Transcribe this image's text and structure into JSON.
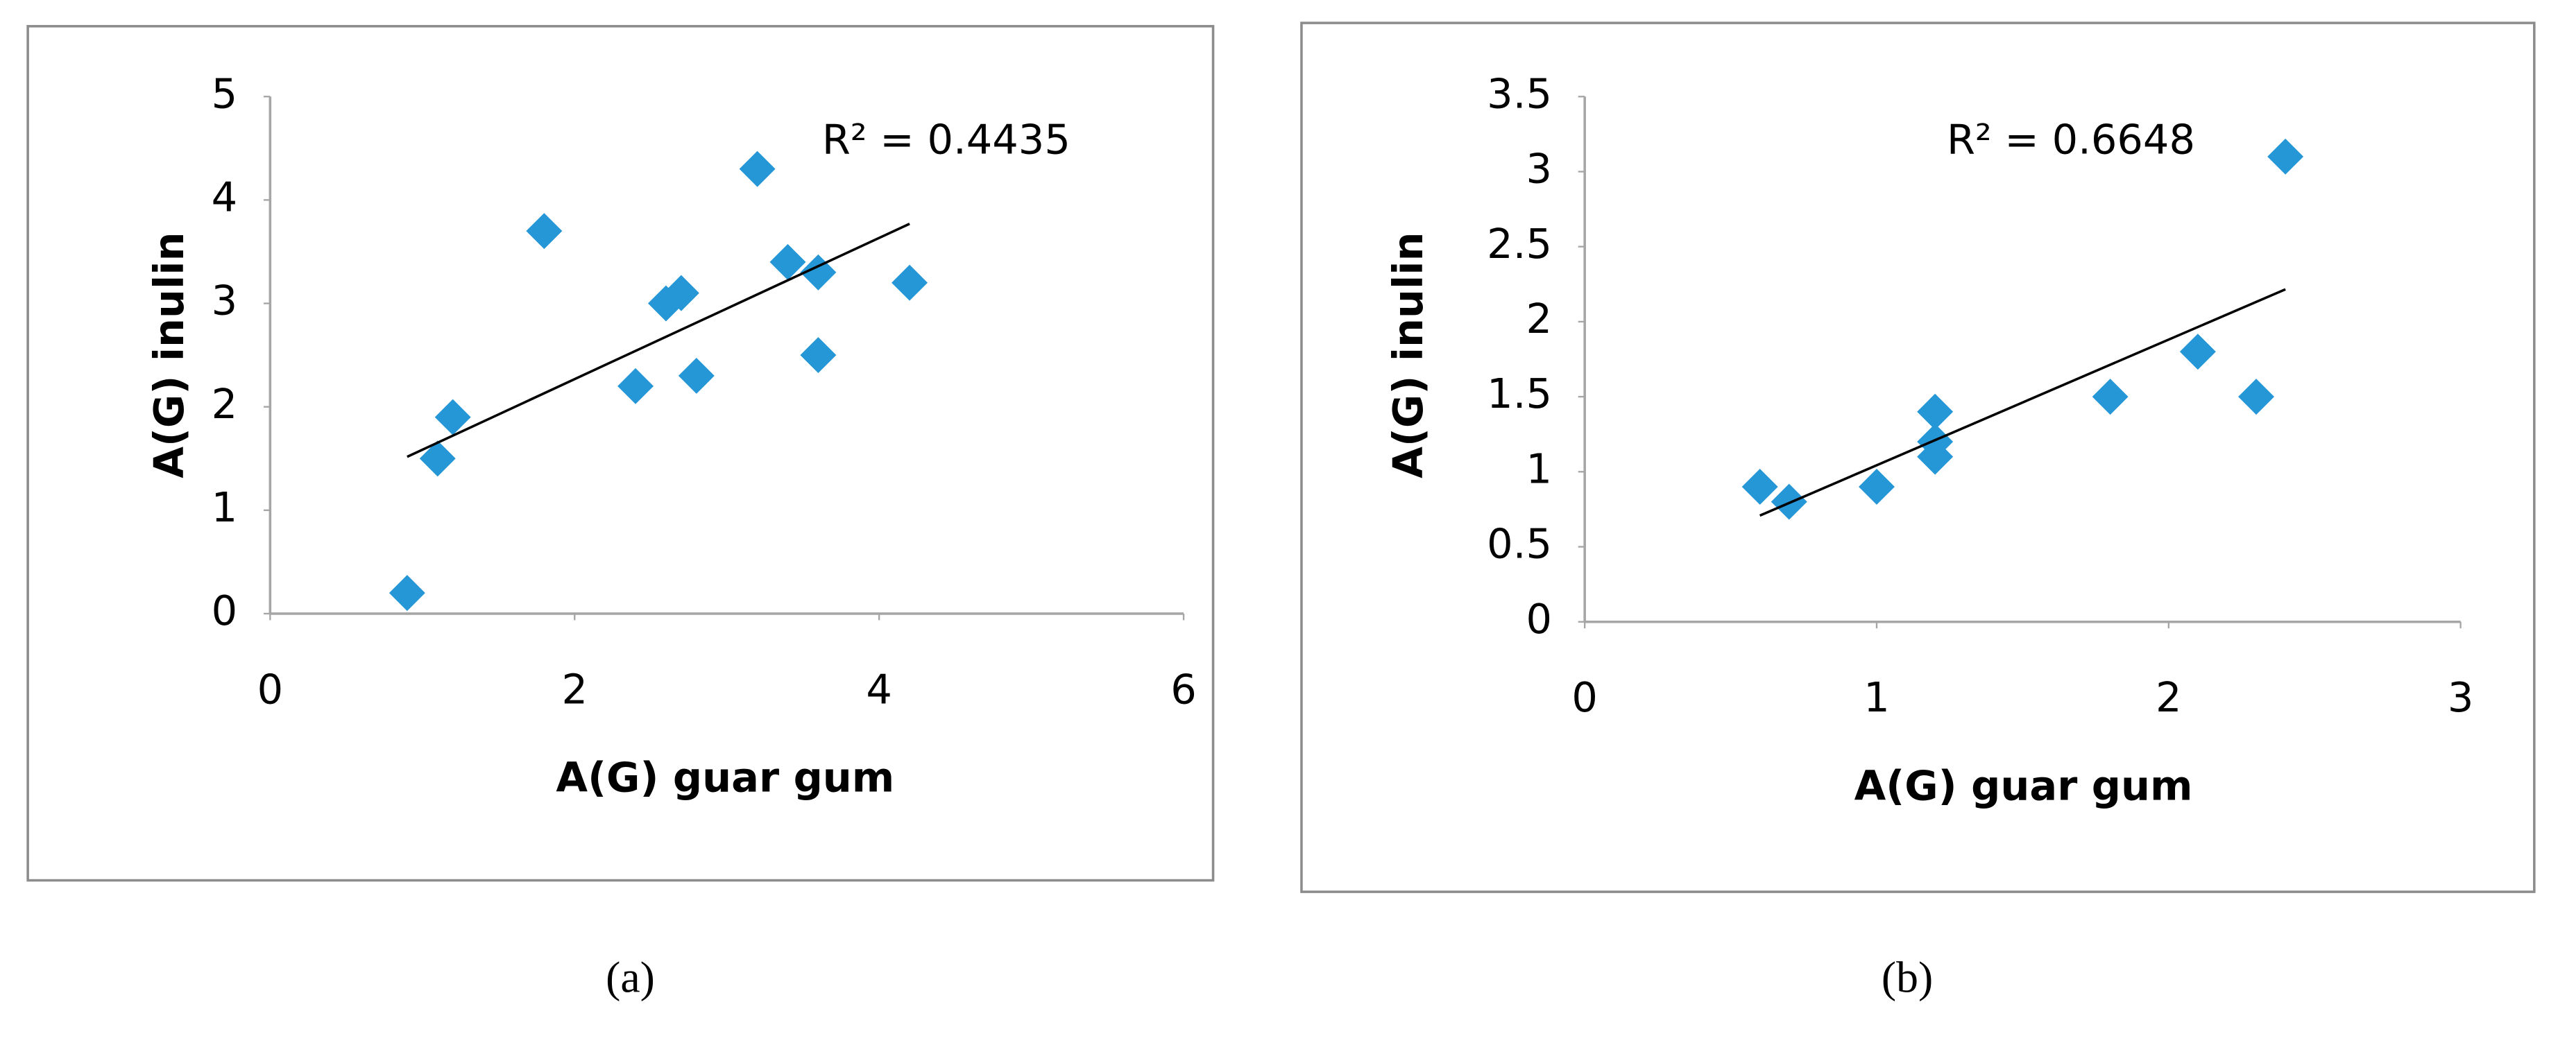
{
  "chart_data": [
    {
      "type": "scatter",
      "x": [
        0.9,
        1.1,
        1.2,
        1.8,
        2.4,
        2.6,
        2.7,
        2.8,
        3.2,
        3.4,
        3.6,
        3.6,
        4.2
      ],
      "values": [
        0.2,
        1.5,
        1.9,
        3.7,
        2.2,
        3.0,
        3.1,
        2.3,
        4.3,
        3.4,
        3.3,
        2.5,
        3.2
      ],
      "color": "#2596d6",
      "xlim": [
        0,
        6
      ],
      "xticks": [
        0,
        2,
        4,
        6
      ],
      "ylim": [
        0,
        5
      ],
      "yticks": [
        0,
        1,
        2,
        3,
        4,
        5
      ],
      "xlabel": "A(G) guar gum",
      "ylabel": "A(G) inulin",
      "annotation": "R² = 0.4435",
      "caption": "(a)",
      "trendline": true
    },
    {
      "type": "scatter",
      "x": [
        0.6,
        0.7,
        1.0,
        1.2,
        1.2,
        1.2,
        1.8,
        2.1,
        2.3,
        2.4
      ],
      "values": [
        0.9,
        0.8,
        0.9,
        1.4,
        1.2,
        1.1,
        1.5,
        1.8,
        1.5,
        3.1
      ],
      "color": "#2596d6",
      "xlim": [
        0,
        3
      ],
      "xticks": [
        0,
        1,
        2,
        3
      ],
      "ylim": [
        0,
        3.5
      ],
      "yticks": [
        0,
        0.5,
        1,
        1.5,
        2,
        2.5,
        3,
        3.5
      ],
      "xlabel": "A(G) guar gum",
      "ylabel": "A(G) inulin",
      "annotation": "R² = 0.6648",
      "caption": "(b)",
      "trendline": true
    }
  ]
}
